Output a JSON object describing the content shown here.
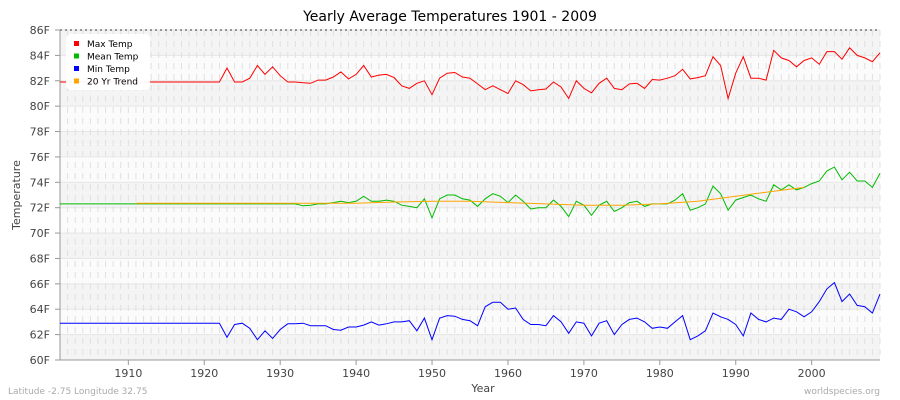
{
  "chart_data": {
    "type": "line",
    "title": "Yearly Average Temperatures 1901 - 2009",
    "xlabel": "Year",
    "ylabel": "Temperature",
    "xlim": [
      1901,
      2009
    ],
    "ylim": [
      60,
      86
    ],
    "x_ticks": [
      1910,
      1920,
      1930,
      1940,
      1950,
      1960,
      1970,
      1980,
      1990,
      2000
    ],
    "y_ticks": [
      "60F",
      "62F",
      "64F",
      "66F",
      "68F",
      "70F",
      "72F",
      "74F",
      "76F",
      "78F",
      "80F",
      "82F",
      "84F",
      "86F"
    ],
    "grid": true,
    "legend_position": "top-left",
    "x_start": 1901,
    "series": [
      {
        "name": "Max Temp",
        "color": "#ff0000",
        "values": [
          81.9,
          81.9,
          81.9,
          81.9,
          81.9,
          81.9,
          81.9,
          81.9,
          81.9,
          81.9,
          81.9,
          81.9,
          81.9,
          81.9,
          81.9,
          81.9,
          81.9,
          81.9,
          81.9,
          81.9,
          81.9,
          81.9,
          83.0,
          81.9,
          81.9,
          82.2,
          83.2,
          82.5,
          83.1,
          82.4,
          81.9,
          81.9,
          81.85,
          81.8,
          82.05,
          82.05,
          82.3,
          82.7,
          82.15,
          82.5,
          83.2,
          82.3,
          82.45,
          82.5,
          82.25,
          81.6,
          81.4,
          81.8,
          82.0,
          80.9,
          82.2,
          82.6,
          82.65,
          82.3,
          82.2,
          81.75,
          81.3,
          81.6,
          81.3,
          81.0,
          82.0,
          81.7,
          81.2,
          81.3,
          81.35,
          81.9,
          81.5,
          80.6,
          82.0,
          81.4,
          81.05,
          81.8,
          82.2,
          81.4,
          81.3,
          81.75,
          81.8,
          81.4,
          82.1,
          82.05,
          82.2,
          82.4,
          82.9,
          82.15,
          82.25,
          82.4,
          83.9,
          83.2,
          80.6,
          82.6,
          83.9,
          82.2,
          82.2,
          82.05,
          84.4,
          83.8,
          83.6,
          83.1,
          83.6,
          83.8,
          83.3,
          84.3,
          84.3,
          83.7,
          84.6,
          84.0,
          83.8,
          83.5,
          84.2
        ]
      },
      {
        "name": "Mean Temp",
        "color": "#00bb00",
        "values": [
          72.3,
          72.3,
          72.3,
          72.3,
          72.3,
          72.3,
          72.3,
          72.3,
          72.3,
          72.3,
          72.3,
          72.3,
          72.3,
          72.3,
          72.3,
          72.3,
          72.3,
          72.3,
          72.3,
          72.3,
          72.3,
          72.3,
          72.3,
          72.3,
          72.3,
          72.3,
          72.3,
          72.3,
          72.3,
          72.3,
          72.3,
          72.3,
          72.15,
          72.2,
          72.3,
          72.3,
          72.4,
          72.5,
          72.4,
          72.5,
          72.9,
          72.5,
          72.5,
          72.6,
          72.5,
          72.2,
          72.1,
          72.0,
          72.7,
          71.2,
          72.7,
          73.0,
          73.0,
          72.7,
          72.6,
          72.1,
          72.7,
          73.1,
          72.9,
          72.4,
          73.0,
          72.5,
          71.9,
          72.0,
          72.0,
          72.6,
          72.1,
          71.3,
          72.5,
          72.2,
          71.4,
          72.2,
          72.5,
          71.7,
          72.0,
          72.4,
          72.5,
          72.1,
          72.3,
          72.3,
          72.3,
          72.6,
          73.1,
          71.8,
          72.0,
          72.3,
          73.7,
          73.1,
          71.8,
          72.6,
          72.8,
          73.0,
          72.7,
          72.5,
          73.8,
          73.4,
          73.8,
          73.4,
          73.6,
          73.9,
          74.1,
          74.9,
          75.2,
          74.2,
          74.8,
          74.1,
          74.1,
          73.6,
          74.7
        ]
      },
      {
        "name": "Min Temp",
        "color": "#0000ff",
        "values": [
          62.9,
          62.9,
          62.9,
          62.9,
          62.9,
          62.9,
          62.9,
          62.9,
          62.9,
          62.9,
          62.9,
          62.9,
          62.9,
          62.9,
          62.9,
          62.9,
          62.9,
          62.9,
          62.9,
          62.9,
          62.9,
          62.9,
          61.8,
          62.8,
          62.9,
          62.5,
          61.6,
          62.3,
          61.7,
          62.4,
          62.85,
          62.85,
          62.9,
          62.7,
          62.7,
          62.7,
          62.4,
          62.35,
          62.6,
          62.6,
          62.75,
          63.0,
          62.75,
          62.85,
          63.0,
          63.0,
          63.1,
          62.3,
          63.3,
          61.6,
          63.3,
          63.5,
          63.45,
          63.2,
          63.1,
          62.7,
          64.2,
          64.55,
          64.55,
          64.0,
          64.1,
          63.2,
          62.8,
          62.8,
          62.7,
          63.5,
          63.0,
          62.1,
          63.0,
          62.9,
          61.9,
          62.9,
          63.1,
          62.0,
          62.8,
          63.2,
          63.3,
          63.0,
          62.5,
          62.6,
          62.5,
          63.0,
          63.5,
          61.6,
          61.9,
          62.3,
          63.7,
          63.4,
          63.2,
          62.8,
          61.9,
          63.7,
          63.2,
          63.0,
          63.3,
          63.2,
          64.0,
          63.8,
          63.4,
          63.8,
          64.6,
          65.6,
          66.1,
          64.6,
          65.2,
          64.3,
          64.2,
          63.7,
          65.2
        ]
      },
      {
        "name": "20 Yr Trend",
        "color": "#ffa500",
        "x": [
          1911,
          1920,
          1930,
          1940,
          1945,
          1950,
          1955,
          1960,
          1965,
          1970,
          1975,
          1980,
          1985,
          1990,
          1995,
          1999
        ],
        "values": [
          72.35,
          72.35,
          72.35,
          72.35,
          72.45,
          72.5,
          72.5,
          72.4,
          72.3,
          72.2,
          72.2,
          72.3,
          72.5,
          72.9,
          73.3,
          73.6
        ]
      }
    ]
  },
  "footer": {
    "location": "Latitude -2.75 Longitude 32.75",
    "site": "worldspecies.org"
  }
}
